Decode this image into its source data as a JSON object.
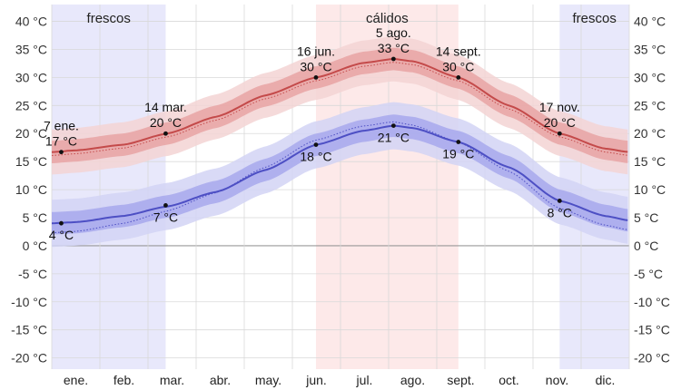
{
  "colors": {
    "high_line": "#c44a4a",
    "high_band_inner": "#e8a3a3",
    "high_band_outer": "#f3d3d3",
    "low_line": "#4d4fc4",
    "low_band_inner": "#a7a8ec",
    "low_band_outer": "#d2d3f5",
    "cool_season": "#e8e8fb",
    "warm_season": "#fde9e9",
    "grid": "#d9d9d9",
    "zero_line": "#999999"
  },
  "chart_data": {
    "type": "area",
    "months": [
      "ene.",
      "feb.",
      "mar.",
      "abr.",
      "may.",
      "jun.",
      "jul.",
      "ago.",
      "sept.",
      "oct.",
      "nov.",
      "dic."
    ],
    "ylim": [
      -22,
      43
    ],
    "y_ticks": [
      40,
      35,
      30,
      25,
      20,
      15,
      10,
      5,
      0,
      -5,
      -10,
      -15,
      -20
    ],
    "y_tick_labels": [
      "40 °C",
      "35 °C",
      "30 °C",
      "25 °C",
      "20 °C",
      "15 °C",
      "10 °C",
      "5 °C",
      "0 °C",
      "-5 °C",
      "-10 °C",
      "-15 °C",
      "-20 °C"
    ],
    "grid": true,
    "seasons": [
      {
        "label": "frescos",
        "start_day": 0,
        "end_day": 72
      },
      {
        "label": "cálidos",
        "start_day": 167,
        "end_day": 257
      },
      {
        "label": "frescos",
        "start_day": 321,
        "end_day": 365
      }
    ],
    "series": [
      {
        "key": "high",
        "days": [
          0,
          15,
          45,
          73,
          104,
          135,
          167,
          197,
          216,
          228,
          257,
          289,
          321,
          350,
          365
        ],
        "values": [
          16.7,
          17.0,
          18.0,
          20.0,
          23.0,
          26.8,
          30.0,
          32.6,
          33.3,
          32.9,
          30.0,
          25.0,
          20.0,
          17.3,
          16.7
        ],
        "band_inner": 2.0,
        "band_outer": 4.0
      },
      {
        "key": "low",
        "days": [
          0,
          15,
          45,
          73,
          104,
          135,
          167,
          197,
          216,
          228,
          257,
          289,
          321,
          350,
          365
        ],
        "values": [
          4.0,
          4.2,
          5.3,
          7.0,
          9.6,
          13.5,
          18.0,
          20.5,
          21.4,
          21.0,
          18.5,
          14.0,
          8.0,
          5.3,
          4.5
        ],
        "band_inner": 2.0,
        "band_outer": 4.2
      }
    ],
    "annotations": [
      {
        "day": 6,
        "value": 16.7,
        "label_top": "7 ene.",
        "label_bottom": "17 °C",
        "position": "above"
      },
      {
        "day": 6,
        "value": 4.0,
        "label_top": "",
        "label_bottom": "4 °C",
        "position": "below"
      },
      {
        "day": 72,
        "value": 20.0,
        "label_top": "14 mar.",
        "label_bottom": "20 °C",
        "position": "above"
      },
      {
        "day": 72,
        "value": 7.2,
        "label_top": "",
        "label_bottom": "7 °C",
        "position": "below"
      },
      {
        "day": 167,
        "value": 30.0,
        "label_top": "16 jun.",
        "label_bottom": "30 °C",
        "position": "above"
      },
      {
        "day": 167,
        "value": 18.0,
        "label_top": "",
        "label_bottom": "18 °C",
        "position": "below"
      },
      {
        "day": 216,
        "value": 33.3,
        "label_top": "5 ago.",
        "label_bottom": "33 °C",
        "position": "above"
      },
      {
        "day": 216,
        "value": 21.4,
        "label_top": "",
        "label_bottom": "21 °C",
        "position": "below"
      },
      {
        "day": 257,
        "value": 30.0,
        "label_top": "14 sept.",
        "label_bottom": "30 °C",
        "position": "above"
      },
      {
        "day": 257,
        "value": 18.5,
        "label_top": "",
        "label_bottom": "19 °C",
        "position": "below"
      },
      {
        "day": 321,
        "value": 20.0,
        "label_top": "17 nov.",
        "label_bottom": "20 °C",
        "position": "above"
      },
      {
        "day": 321,
        "value": 8.0,
        "label_top": "",
        "label_bottom": "8 °C",
        "position": "below"
      }
    ]
  }
}
